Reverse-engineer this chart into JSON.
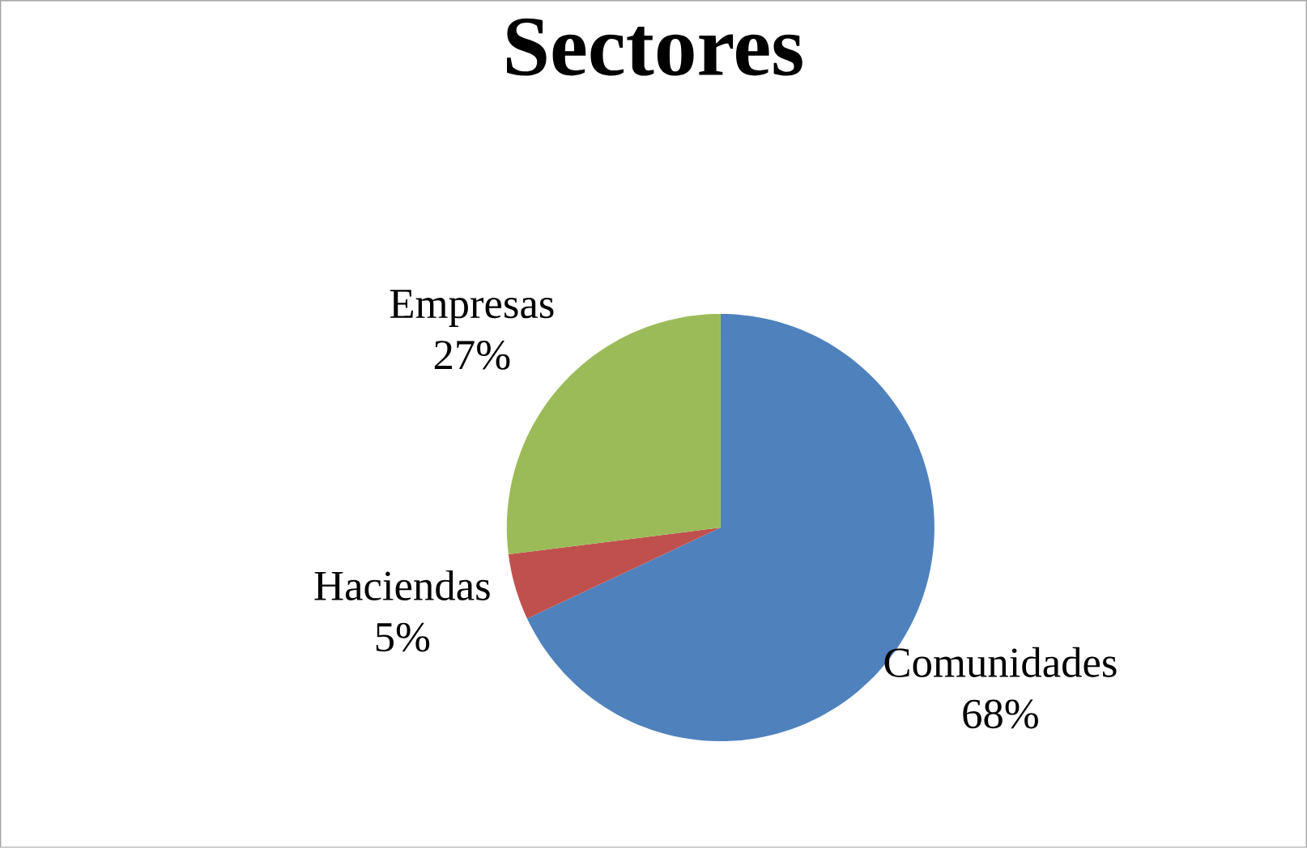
{
  "chart_data": {
    "type": "pie",
    "title": "Sectores",
    "categories": [
      "Comunidades",
      "Haciendas",
      "Empresas"
    ],
    "values": [
      68,
      5,
      27
    ],
    "colors": [
      "#4f81bd",
      "#c0504d",
      "#9bbb59"
    ],
    "value_labels": [
      "68%",
      "5%",
      "27%"
    ]
  }
}
